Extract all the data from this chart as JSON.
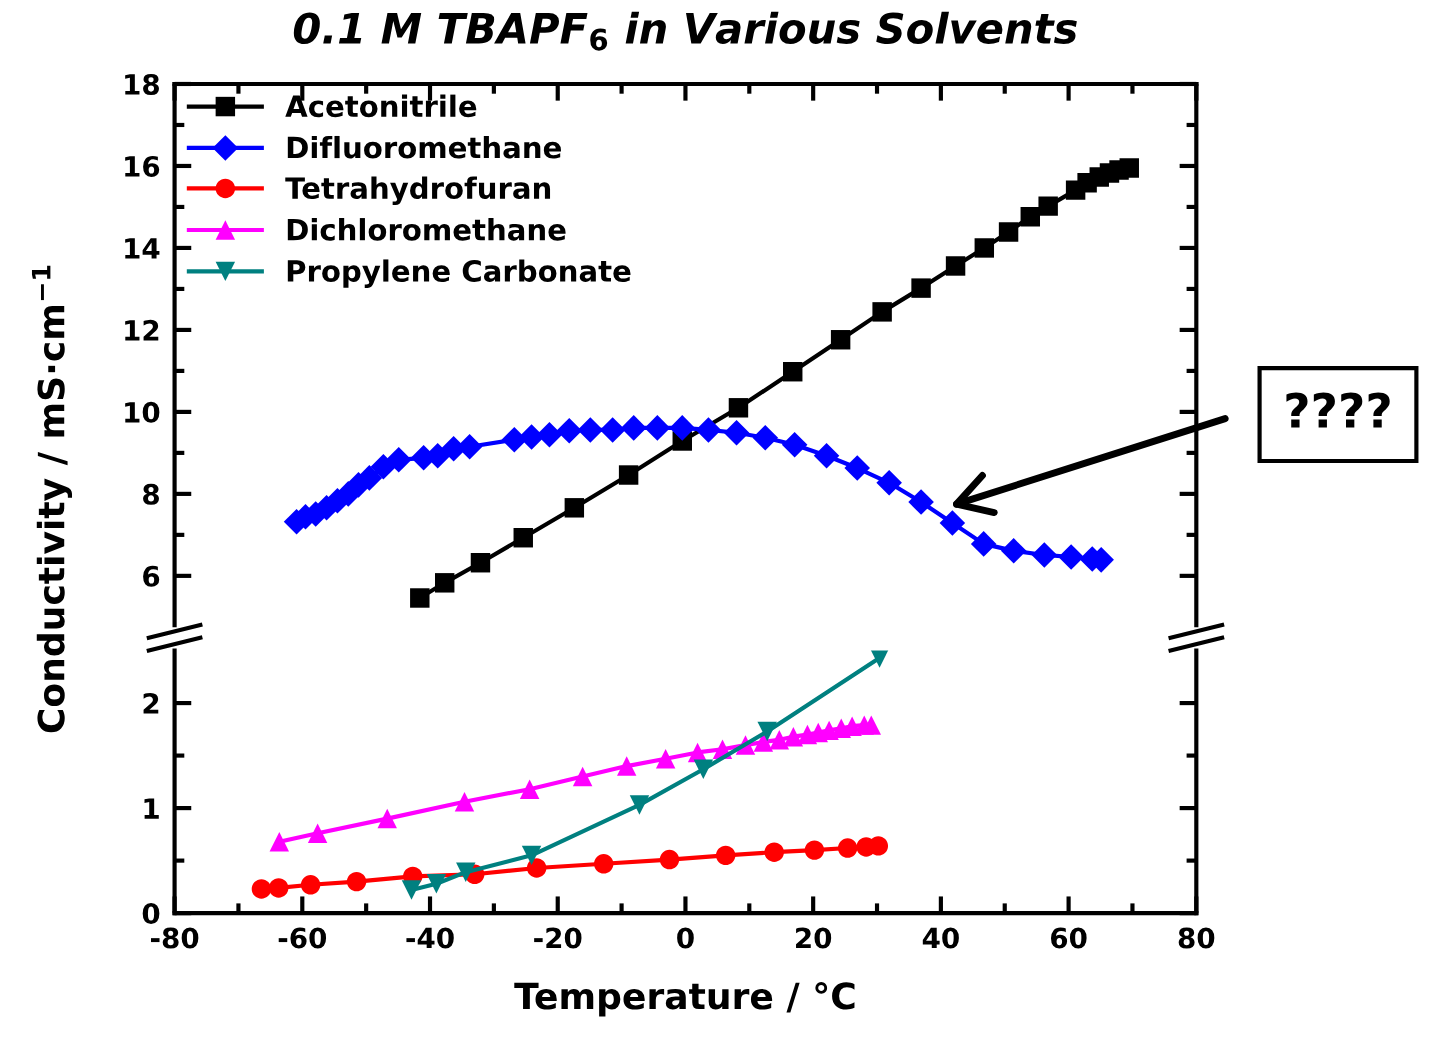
{
  "chart_data": [
    {
      "type": "line",
      "title": "0.1 M TBAPF$_{6}$ in Various Solvents",
      "ylabel": "Conductivity / mS·cm$^{−1}$",
      "xlim": [
        -80,
        80
      ],
      "xticks": [
        -80,
        -60,
        -40,
        -20,
        0,
        20,
        40,
        60,
        80
      ],
      "ylim": [
        4.8,
        18
      ],
      "yticks": [
        6,
        8,
        10,
        12,
        14,
        16,
        18
      ],
      "tick_labels": "y",
      "legend": "top left",
      "grid": false,
      "line_style": "solid",
      "annotations": [
        "????"
      ],
      "series": [
        {
          "name": "Acetonitrile",
          "color": "#000000",
          "marker": "square",
          "x": [
            -41.6,
            -37.7,
            -32.1,
            -25.4,
            -17.4,
            -8.9,
            -0.5,
            8.3,
            16.8,
            24.3,
            30.8,
            36.9,
            42.3,
            46.8,
            50.6,
            54.0,
            56.8,
            61.1,
            62.9,
            64.8,
            66.4,
            67.9,
            69.5
          ],
          "values": [
            5.46,
            5.83,
            6.32,
            6.93,
            7.66,
            8.46,
            9.29,
            10.1,
            10.98,
            11.76,
            12.44,
            13.02,
            13.56,
            14.0,
            14.39,
            14.76,
            15.02,
            15.41,
            15.59,
            15.73,
            15.83,
            15.9,
            15.95
          ]
        },
        {
          "name": "Difluoromethane",
          "color": "#0000ff",
          "marker": "diamond",
          "x": [
            -60.9,
            -59.5,
            -57.9,
            -56.2,
            -54.5,
            -52.8,
            -51.2,
            -49.5,
            -47.3,
            -44.9,
            -41.0,
            -38.8,
            -36.3,
            -33.8,
            -26.8,
            -24.1,
            -21.3,
            -18.2,
            -14.9,
            -11.4,
            -8.1,
            -4.4,
            -0.5,
            3.6,
            8.0,
            12.5,
            17.1,
            22.1,
            26.9,
            31.9,
            36.9,
            41.8,
            46.7,
            51.4,
            56.2,
            60.4,
            63.7,
            65.1
          ],
          "values": [
            7.32,
            7.44,
            7.51,
            7.66,
            7.83,
            8.0,
            8.22,
            8.39,
            8.66,
            8.83,
            8.88,
            8.93,
            9.1,
            9.15,
            9.32,
            9.39,
            9.44,
            9.54,
            9.56,
            9.56,
            9.61,
            9.61,
            9.61,
            9.56,
            9.49,
            9.37,
            9.2,
            8.93,
            8.63,
            8.27,
            7.8,
            7.29,
            6.78,
            6.61,
            6.51,
            6.46,
            6.41,
            6.39
          ]
        }
      ]
    },
    {
      "type": "line",
      "xlabel": "Temperature / °C",
      "legend": "top left",
      "xlim": [
        -80,
        80
      ],
      "xticks": [
        -80,
        -60,
        -40,
        -20,
        0,
        20,
        40,
        60,
        80
      ],
      "ylim": [
        0,
        2.5
      ],
      "yticks": [
        0,
        1,
        2
      ],
      "grid": false,
      "line_style": "solid",
      "series": [
        {
          "name": "Tetrahydrofuran",
          "color": "#ff0000",
          "marker": "circle",
          "x": [
            -66.4,
            -63.7,
            -58.7,
            -51.5,
            -42.7,
            -33.0,
            -23.3,
            -12.8,
            -2.5,
            6.3,
            13.9,
            20.2,
            25.4,
            28.3,
            30.2
          ],
          "values": [
            0.23,
            0.24,
            0.27,
            0.3,
            0.35,
            0.37,
            0.43,
            0.47,
            0.51,
            0.55,
            0.58,
            0.6,
            0.62,
            0.63,
            0.64
          ]
        },
        {
          "name": "Dichloromethane",
          "color": "#ff00ff",
          "marker": "triangle",
          "x": [
            -63.6,
            -57.6,
            -46.7,
            -34.6,
            -24.4,
            -16.1,
            -9.2,
            -3.1,
            1.9,
            5.8,
            9.4,
            12.2,
            14.7,
            16.9,
            19.1,
            20.8,
            22.5,
            24.4,
            26.1,
            28.0,
            29.1
          ],
          "values": [
            0.68,
            0.76,
            0.9,
            1.06,
            1.18,
            1.3,
            1.4,
            1.47,
            1.53,
            1.56,
            1.6,
            1.63,
            1.65,
            1.68,
            1.7,
            1.72,
            1.74,
            1.76,
            1.78,
            1.79,
            1.79
          ]
        },
        {
          "name": "Propylene Carbonate",
          "color": "#008080",
          "marker": "triangle_down",
          "x": [
            -42.9,
            -39.0,
            -34.4,
            -24.1,
            -7.2,
            2.8,
            12.8,
            30.4
          ],
          "values": [
            0.22,
            0.28,
            0.39,
            0.55,
            1.03,
            1.37,
            1.73,
            2.43
          ]
        }
      ]
    }
  ]
}
